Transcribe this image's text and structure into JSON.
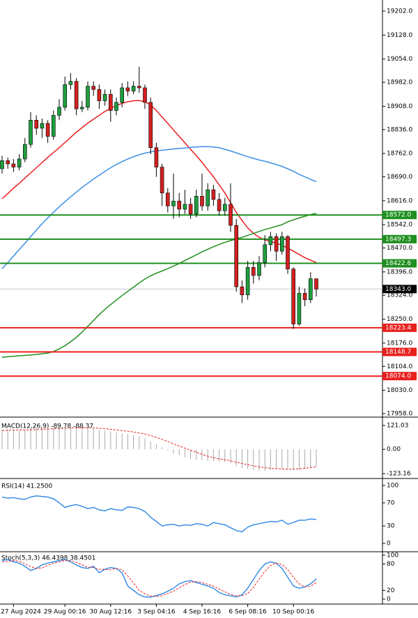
{
  "chart_data": [
    {
      "type": "candlestick",
      "categories": [
        null,
        null,
        "27 Aug 2024",
        null,
        null,
        null,
        null,
        null,
        null,
        null,
        null,
        "29 Aug 00:16",
        null,
        null,
        null,
        null,
        null,
        null,
        null,
        "30 Aug 12:16",
        null,
        null,
        null,
        null,
        null,
        null,
        null,
        "3 Sep 04:16",
        null,
        null,
        null,
        null,
        null,
        null,
        null,
        "4 Sep 16:16",
        null,
        null,
        null,
        null,
        null,
        null,
        null,
        "6 Sep 08:16",
        null,
        null,
        null,
        null,
        null,
        null,
        null,
        "10 Sep 00:16",
        null,
        null,
        null,
        null
      ],
      "open": [
        18715,
        18740,
        18730,
        18720,
        18745,
        18790,
        18865,
        18840,
        18855,
        18815,
        18880,
        18905,
        18975,
        18985,
        18900,
        18905,
        18970,
        18960,
        18925,
        18945,
        18895,
        18920,
        18965,
        18955,
        18970,
        18965,
        18920,
        18780,
        18720,
        18640,
        18600,
        18615,
        18590,
        18605,
        18575,
        18630,
        18600,
        18650,
        18620,
        18585,
        18605,
        18540,
        18350,
        18325,
        18410,
        18385,
        18425,
        18480,
        18505,
        18460,
        18505,
        18405,
        18235,
        18330,
        18310,
        18375
      ],
      "high": [
        18755,
        18750,
        18745,
        18760,
        18810,
        18890,
        18880,
        18870,
        18865,
        18895,
        18930,
        19000,
        19010,
        18995,
        18925,
        18985,
        18985,
        18975,
        18960,
        18960,
        18935,
        18980,
        18985,
        18985,
        19030,
        18975,
        18935,
        18795,
        18730,
        18655,
        18700,
        18640,
        18650,
        18625,
        18650,
        18700,
        18670,
        18665,
        18640,
        18625,
        18670,
        18560,
        18370,
        18430,
        18430,
        18445,
        18510,
        18520,
        18515,
        18520,
        18510,
        18410,
        18350,
        18345,
        18395,
        18370
      ],
      "low": [
        18700,
        18715,
        18705,
        18710,
        18735,
        18780,
        18820,
        18810,
        18795,
        18805,
        18865,
        18895,
        18960,
        18880,
        18890,
        18895,
        18940,
        18900,
        18910,
        18860,
        18880,
        18905,
        18940,
        18945,
        18950,
        18900,
        18760,
        18690,
        18600,
        18580,
        18560,
        18565,
        18575,
        18560,
        18565,
        18585,
        18585,
        18600,
        18570,
        18570,
        18520,
        18335,
        18300,
        18310,
        18360,
        18370,
        18410,
        18460,
        18430,
        18450,
        18390,
        18220,
        18230,
        18290,
        18300,
        18320
      ],
      "close": [
        18740,
        18730,
        18720,
        18745,
        18790,
        18865,
        18840,
        18855,
        18815,
        18880,
        18905,
        18975,
        18985,
        18900,
        18905,
        18970,
        18960,
        18925,
        18945,
        18895,
        18920,
        18965,
        18955,
        18970,
        18965,
        18920,
        18780,
        18720,
        18640,
        18600,
        18615,
        18590,
        18605,
        18575,
        18630,
        18600,
        18650,
        18620,
        18585,
        18605,
        18540,
        18350,
        18325,
        18410,
        18385,
        18425,
        18480,
        18505,
        18460,
        18505,
        18405,
        18235,
        18330,
        18310,
        18375,
        18343
      ],
      "up_color": "#1e9e3e",
      "down_color": "#d42020",
      "series": [
        {
          "color": "#e8201e",
          "values": [
            18622,
            18638,
            18655,
            18670,
            18686,
            18702,
            18718,
            18734,
            18750,
            18765,
            18780,
            18796,
            18812,
            18828,
            18842,
            18856,
            18868,
            18880,
            18892,
            18902,
            18910,
            18917,
            18922,
            18925,
            18926,
            18922,
            18912,
            18895,
            18875,
            18855,
            18835,
            18815,
            18795,
            18775,
            18755,
            18735,
            18712,
            18690,
            18665,
            18640,
            18610,
            18580,
            18555,
            18532,
            18515,
            18503,
            18495,
            18490,
            18485,
            18478,
            18470,
            18460,
            18450,
            18440,
            18432,
            18425
          ]
        },
        {
          "color": "#3a8ee6",
          "values": [
            18406,
            18425,
            18445,
            18465,
            18485,
            18505,
            18525,
            18545,
            18563,
            18580,
            18597,
            18613,
            18628,
            18643,
            18657,
            18670,
            18683,
            18695,
            18707,
            18718,
            18728,
            18737,
            18745,
            18752,
            18758,
            18763,
            18767,
            18770,
            18772,
            18774,
            18776,
            18778,
            18779,
            18781,
            18782,
            18783,
            18783,
            18782,
            18780,
            18775,
            18770,
            18764,
            18758,
            18752,
            18747,
            18742,
            18738,
            18733,
            18728,
            18722,
            18715,
            18707,
            18698,
            18690,
            18682,
            18675
          ]
        },
        {
          "color": "#1f8f1f",
          "values": [
            18132,
            18134,
            18135,
            18137,
            18138,
            18139,
            18141,
            18143,
            18145,
            18150,
            18158,
            18168,
            18180,
            18194,
            18210,
            18228,
            18246,
            18264,
            18280,
            18295,
            18309,
            18323,
            18336,
            18349,
            18362,
            18374,
            18384,
            18392,
            18399,
            18406,
            18414,
            18422,
            18431,
            18440,
            18449,
            18458,
            18466,
            18474,
            18481,
            18487,
            18493,
            18498,
            18503,
            18509,
            18515,
            18521,
            18527,
            18532,
            18537,
            18542,
            18551,
            18557,
            18563,
            18568,
            18573,
            18577
          ]
        }
      ],
      "levels": [
        {
          "value": 18572,
          "label": "18572.0",
          "color": "#1f8f1f"
        },
        {
          "value": 18497.3,
          "label": "18497.3",
          "color": "#1f8f1f"
        },
        {
          "value": 18422.6,
          "label": "18422.6",
          "color": "#1f8f1f"
        },
        {
          "value": 18223.4,
          "label": "18223.4",
          "color": "#e8201e"
        },
        {
          "value": 18148.7,
          "label": "18148.7",
          "color": "#e8201e"
        },
        {
          "value": 18074,
          "label": "18074.0",
          "color": "#e8201e"
        }
      ],
      "current": {
        "value": 18343,
        "label": "18343.0"
      },
      "ylim": [
        17958,
        19202
      ],
      "yticks": [
        {
          "value": 19202,
          "label": "19202.0"
        },
        {
          "value": 19128,
          "label": "19128.0"
        },
        {
          "value": 19054,
          "label": "19054.0"
        },
        {
          "value": 18982,
          "label": "18982.0"
        },
        {
          "value": 18908,
          "label": "18908.0"
        },
        {
          "value": 18836,
          "label": "18836.0"
        },
        {
          "value": 18762,
          "label": "18762.0"
        },
        {
          "value": 18690,
          "label": "18690.0"
        },
        {
          "value": 18616,
          "label": "18616.0"
        },
        {
          "value": 18542,
          "label": "18542.0"
        },
        {
          "value": 18470,
          "label": "18470.0"
        },
        {
          "value": 18396,
          "label": "18396.0"
        },
        {
          "value": 18324,
          "label": "18324.0"
        },
        {
          "value": 18250,
          "label": "18250.0"
        },
        {
          "value": 18176,
          "label": "18176.0"
        },
        {
          "value": 18104,
          "label": "18104.0"
        },
        {
          "value": 18030,
          "label": "18030.0"
        },
        {
          "value": 17958,
          "label": "17958.0"
        }
      ]
    },
    {
      "type": "bar",
      "title": "MACD(12,26,9) -89.78 -88.37",
      "series": [
        {
          "type": "bar",
          "color": "#a8a8a8",
          "values": [
            100,
            102,
            98,
            95,
            100,
            105,
            108,
            106,
            105,
            108,
            110,
            115,
            118,
            112,
            108,
            108,
            105,
            100,
            95,
            90,
            85,
            82,
            78,
            72,
            65,
            55,
            40,
            25,
            10,
            -5,
            -20,
            -30,
            -40,
            -48,
            -52,
            -55,
            -58,
            -60,
            -62,
            -64,
            -70,
            -85,
            -95,
            -100,
            -105,
            -108,
            -108,
            -105,
            -102,
            -100,
            -100,
            -105,
            -104,
            -100,
            -95,
            -89.78
          ]
        },
        {
          "type": "line",
          "dashed": true,
          "color": "#e8201e",
          "values": [
            95,
            97,
            98,
            98,
            98,
            99,
            100,
            102,
            103,
            104,
            105,
            107,
            109,
            110,
            110,
            110,
            109,
            107,
            105,
            102,
            98,
            95,
            92,
            88,
            83,
            77,
            70,
            61,
            51,
            40,
            28,
            17,
            6,
            -5,
            -15,
            -25,
            -35,
            -42,
            -48,
            -53,
            -58,
            -65,
            -72,
            -78,
            -84,
            -89,
            -93,
            -96,
            -98,
            -99,
            -100,
            -100,
            -99,
            -96,
            -92,
            -88.37
          ]
        }
      ],
      "ylim": [
        -123.16,
        121.03
      ],
      "yticks": [
        {
          "value": 121.03,
          "label": "121.03"
        },
        {
          "value": 0,
          "label": "0.00"
        },
        {
          "value": -123.16,
          "label": "-123.16"
        }
      ]
    },
    {
      "type": "line",
      "title": "RSI(14) 41.2500",
      "series": [
        {
          "type": "line",
          "color": "#3a8ee6",
          "values": [
            80,
            78,
            79,
            77,
            76,
            80,
            82,
            81,
            80,
            77,
            70,
            62,
            65,
            67,
            64,
            60,
            62,
            58,
            56,
            60,
            58,
            57,
            63,
            62,
            60,
            55,
            45,
            38,
            30,
            32,
            33,
            30,
            32,
            31,
            34,
            33,
            30,
            36,
            34,
            32,
            27,
            22,
            20,
            28,
            32,
            34,
            36,
            38,
            37,
            40,
            33,
            36,
            40,
            40,
            42,
            41.25
          ]
        }
      ],
      "ylim": [
        0,
        100
      ],
      "yticks": [
        100,
        70,
        30,
        0
      ]
    },
    {
      "type": "line",
      "title": "Stoch(5,3,3) 46.4398 38.4501",
      "series": [
        {
          "type": "line",
          "color": "#3a8ee6",
          "values": [
            88,
            90,
            85,
            82,
            75,
            65,
            70,
            78,
            82,
            85,
            88,
            90,
            85,
            78,
            72,
            70,
            75,
            60,
            68,
            72,
            70,
            60,
            30,
            20,
            10,
            5,
            5,
            8,
            12,
            18,
            25,
            35,
            40,
            42,
            38,
            34,
            30,
            25,
            15,
            10,
            8,
            5,
            10,
            25,
            45,
            65,
            80,
            85,
            82,
            70,
            50,
            30,
            25,
            28,
            35,
            46.4398
          ]
        },
        {
          "type": "line",
          "dashed": true,
          "color": "#e8201e",
          "values": [
            85,
            86,
            88,
            86,
            81,
            74,
            70,
            71,
            77,
            82,
            85,
            88,
            88,
            84,
            78,
            73,
            72,
            68,
            68,
            67,
            70,
            67,
            53,
            37,
            20,
            12,
            7,
            6,
            8,
            13,
            18,
            26,
            33,
            39,
            40,
            38,
            34,
            30,
            23,
            17,
            11,
            8,
            8,
            13,
            27,
            45,
            63,
            77,
            82,
            79,
            67,
            50,
            35,
            28,
            29,
            38.4501
          ]
        }
      ],
      "ylim": [
        0,
        100
      ],
      "yticks": [
        100,
        80,
        20,
        0
      ]
    }
  ]
}
